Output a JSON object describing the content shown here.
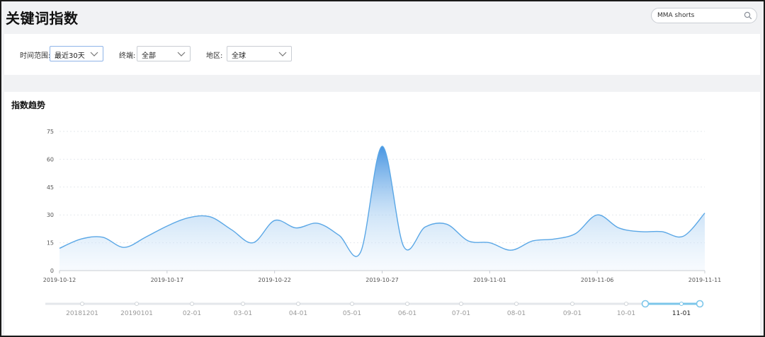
{
  "header": {
    "title": "关键词指数",
    "search_value": "MMA shorts",
    "search_icon": "search-icon"
  },
  "filters": [
    {
      "label": "时间范围:",
      "value": "最近30天",
      "active": true
    },
    {
      "label": "终端:",
      "value": "全部",
      "active": false
    },
    {
      "label": "地区:",
      "value": "全球",
      "active": false
    }
  ],
  "section": {
    "title": "指数趋势"
  },
  "colors": {
    "line": "#5aa7e6",
    "area_top": "#4a9be6",
    "timeline_active": "#7cc6ea"
  },
  "chart_data": {
    "type": "area",
    "title": "指数趋势",
    "xlabel": "",
    "ylabel": "",
    "ylim": [
      0,
      75
    ],
    "yticks": [
      0,
      15,
      30,
      45,
      60,
      75
    ],
    "grid": true,
    "legend": "none",
    "x_tick_labels": [
      "2019-10-12",
      "2019-10-17",
      "2019-10-22",
      "2019-10-27",
      "2019-11-01",
      "2019-11-06",
      "2019-11-11"
    ],
    "x": [
      "2019-10-12",
      "2019-10-13",
      "2019-10-14",
      "2019-10-15",
      "2019-10-16",
      "2019-10-17",
      "2019-10-18",
      "2019-10-19",
      "2019-10-20",
      "2019-10-21",
      "2019-10-22",
      "2019-10-23",
      "2019-10-24",
      "2019-10-25",
      "2019-10-26",
      "2019-10-27",
      "2019-10-28",
      "2019-10-29",
      "2019-10-30",
      "2019-10-31",
      "2019-11-01",
      "2019-11-02",
      "2019-11-03",
      "2019-11-04",
      "2019-11-05",
      "2019-11-06",
      "2019-11-07",
      "2019-11-08",
      "2019-11-09",
      "2019-11-10",
      "2019-11-11"
    ],
    "series": [
      {
        "values": [
          12,
          17,
          18,
          12.5,
          18,
          24,
          28.5,
          29,
          22,
          15,
          27,
          23,
          25.5,
          19,
          10,
          67,
          13,
          23.5,
          25,
          16,
          15,
          11,
          16,
          17,
          20,
          30,
          23,
          21,
          21,
          18.5,
          31
        ]
      }
    ]
  },
  "timeline": {
    "labels": [
      "20181201",
      "20190101",
      "02-01",
      "03-01",
      "04-01",
      "05-01",
      "06-01",
      "07-01",
      "08-01",
      "09-01",
      "10-01",
      "11-01"
    ],
    "selected": "11-01"
  }
}
